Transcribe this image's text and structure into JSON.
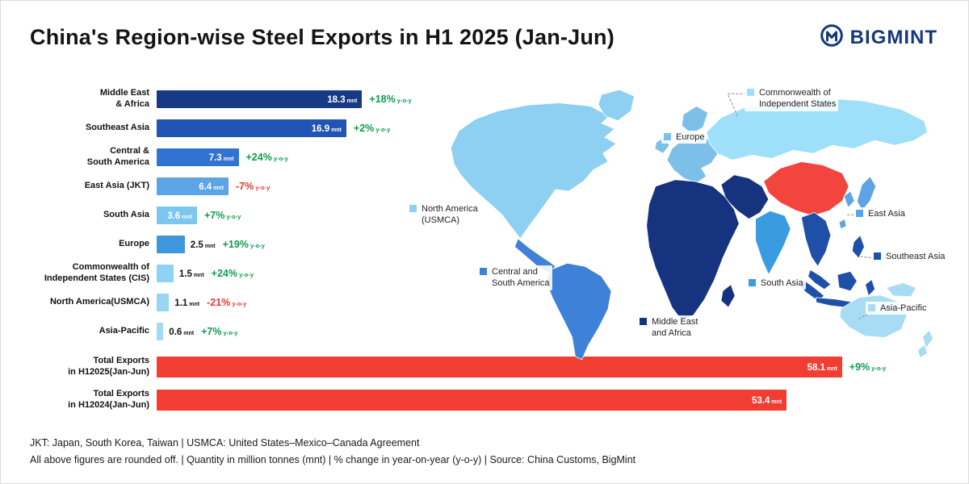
{
  "header": {
    "title": "China's Region-wise Steel Exports in H1 2025 (Jan-Jun)",
    "brand": "BIGMINT",
    "brand_color": "#14387d"
  },
  "chart_data": {
    "type": "bar",
    "orientation": "horizontal",
    "title": "China's Region-wise Steel Exports in H1 2025 (Jan-Jun)",
    "unit": "million tonnes (mnt)",
    "value_suffix": "mnt",
    "change_suffix": "y-o-y",
    "rows": [
      {
        "region": "Middle East & Africa",
        "label_lines": [
          "Middle East",
          "& Africa"
        ],
        "value": 18.3,
        "yoy_change": "+18%",
        "trend": "up",
        "color": "#173a85"
      },
      {
        "region": "Southeast Asia",
        "label_lines": [
          "Southeast Asia"
        ],
        "value": 16.9,
        "yoy_change": "+2%",
        "trend": "up",
        "color": "#2155b4"
      },
      {
        "region": "Central & South America",
        "label_lines": [
          "Central &",
          "South America"
        ],
        "value": 7.3,
        "yoy_change": "+24%",
        "trend": "up",
        "color": "#3273d2"
      },
      {
        "region": "East Asia (JKT)",
        "label_lines": [
          "East Asia (JKT)"
        ],
        "value": 6.4,
        "yoy_change": "-7%",
        "trend": "down",
        "color": "#5ca4e6"
      },
      {
        "region": "South Asia",
        "label_lines": [
          "South Asia"
        ],
        "value": 3.6,
        "yoy_change": "+7%",
        "trend": "up",
        "color": "#7dc6f0"
      },
      {
        "region": "Europe",
        "label_lines": [
          "Europe"
        ],
        "value": 2.5,
        "yoy_change": "+19%",
        "trend": "up",
        "color": "#3e97dc"
      },
      {
        "region": "Commonwealth of Independent States (CIS)",
        "label_lines": [
          "Commonwealth of",
          "Independent States (CIS)"
        ],
        "value": 1.5,
        "yoy_change": "+24%",
        "trend": "up",
        "color": "#8fd2f5"
      },
      {
        "region": "North America(USMCA)",
        "label_lines": [
          "North America(USMCA)"
        ],
        "value": 1.1,
        "yoy_change": "-21%",
        "trend": "down",
        "color": "#97d5f2"
      },
      {
        "region": "Asia-Pacific",
        "label_lines": [
          "Asia-Pacific"
        ],
        "value": 0.6,
        "yoy_change": "+7%",
        "trend": "up",
        "color": "#a4daf5"
      }
    ],
    "totals": [
      {
        "region": "Total Exports in H12025(Jan-Jun)",
        "label_lines": [
          "Total Exports",
          "in H12025(Jan-Jun)"
        ],
        "value": 58.1,
        "yoy_change": "+9%",
        "trend": "up",
        "color": "#f23d33"
      },
      {
        "region": "Total Exports in H12024(Jan-Jun)",
        "label_lines": [
          "Total Exports",
          "in H12024(Jan-Jun)"
        ],
        "value": 53.4,
        "yoy_change": null,
        "trend": null,
        "color": "#f23d33"
      }
    ]
  },
  "map": {
    "region_colors": {
      "north-america": "#8dd0f2",
      "central-south-america": "#3f80d8",
      "europe": "#7cc0ea",
      "cis": "#9edff9",
      "middle-east-africa": "#16337f",
      "south-asia": "#3b9be0",
      "china": "#f2453d",
      "east-asia": "#5ca4e6",
      "southeast-asia": "#1e50a8",
      "asia-pacific": "#a8dcf5"
    },
    "labels": [
      {
        "id": "cis",
        "lines": [
          "Commonwealth of",
          "Independent States"
        ]
      },
      {
        "id": "europe",
        "lines": [
          "Europe"
        ]
      },
      {
        "id": "north-america",
        "lines": [
          "North America",
          "(USMCA)"
        ]
      },
      {
        "id": "east-asia",
        "lines": [
          "East Asia"
        ]
      },
      {
        "id": "southeast-asia",
        "lines": [
          "Southeast Asia"
        ]
      },
      {
        "id": "central-south-america",
        "lines": [
          "Central and",
          "South America"
        ]
      },
      {
        "id": "south-asia",
        "lines": [
          "South Asia"
        ]
      },
      {
        "id": "middle-east-africa",
        "lines": [
          "Middle East",
          "and Africa"
        ]
      },
      {
        "id": "asia-pacific",
        "lines": [
          "Asia-Pacific"
        ]
      }
    ]
  },
  "footer": {
    "line1": "JKT: Japan, South Korea, Taiwan | USMCA: United States–Mexico–Canada Agreement",
    "line2": "All above figures are rounded off. | Quantity in million tonnes (mnt) | % change in year-on-year (y-o-y) | Source: China Customs, BigMint"
  }
}
